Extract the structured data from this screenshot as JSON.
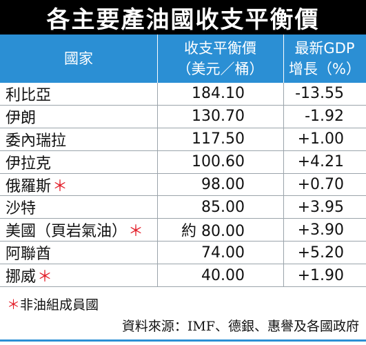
{
  "title": "各主要產油國收支平衡價",
  "header": {
    "country": "國家",
    "price_line1": "收支平衡價",
    "price_line2": "（美元／桶）",
    "gdp_line1": "最新GDP",
    "gdp_line2": "增長（%）"
  },
  "star_symbol": "＊",
  "rows": [
    {
      "name": "利比亞",
      "star": false,
      "price": "184.10",
      "gdp": "-13.55"
    },
    {
      "name": "伊朗",
      "star": false,
      "price": "130.70",
      "gdp": "-1.92"
    },
    {
      "name": "委內瑞拉",
      "star": false,
      "price": "117.50",
      "gdp": "+1.00"
    },
    {
      "name": "伊拉克",
      "star": false,
      "price": "100.60",
      "gdp": "+4.21"
    },
    {
      "name": "俄羅斯",
      "star": true,
      "price": "98.00",
      "gdp": "+0.70"
    },
    {
      "name": "沙特",
      "star": false,
      "price": "85.00",
      "gdp": "+3.95"
    },
    {
      "name": "美國（頁岩氣油）",
      "star": true,
      "price": "約 80.00",
      "gdp": "+3.90"
    },
    {
      "name": "阿聯酋",
      "star": false,
      "price": "74.00",
      "gdp": "+5.20"
    },
    {
      "name": "挪威",
      "star": true,
      "price": "40.00",
      "gdp": "+1.90"
    }
  ],
  "footnote": {
    "star": "＊",
    "text": "非油組成員國"
  },
  "source": "資料來源：IMF、德銀、惠譽及各國政府",
  "colors": {
    "header_bg": "#2b8fd4",
    "title_bg": "#000000",
    "star": "#e3202b"
  }
}
